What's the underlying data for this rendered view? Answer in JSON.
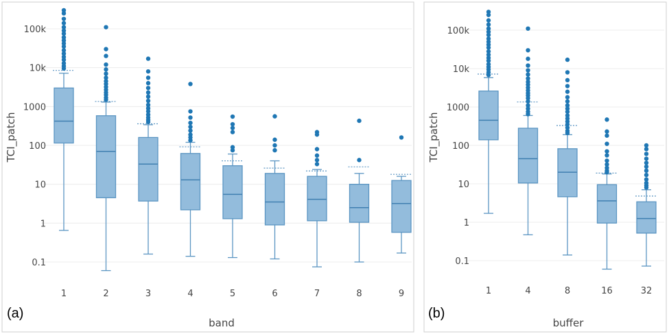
{
  "chart_data": [
    {
      "type": "box",
      "panel_label": "(a)",
      "xlabel": "band",
      "ylabel": "TCI_patch",
      "yscale": "log",
      "ylim": [
        0.05,
        400000
      ],
      "yticks": [
        0.1,
        1,
        10,
        100,
        1000,
        10000,
        100000
      ],
      "ytick_labels": [
        "0.1",
        "1",
        "10",
        "100",
        "1000",
        "10k",
        "100k"
      ],
      "categories": [
        "1",
        "2",
        "3",
        "4",
        "5",
        "6",
        "7",
        "8",
        "9"
      ],
      "boxes": [
        {
          "min": 0.65,
          "q1": 115,
          "median": 420,
          "q3": 3000,
          "max": 7200,
          "mean": 8500,
          "outliers": [
            300000,
            250000,
            180000,
            140000,
            110000,
            90000,
            75000,
            60000,
            50000,
            42000,
            35000,
            28000,
            23000,
            19000,
            16000,
            13000,
            11000,
            9500
          ]
        },
        {
          "min": 0.06,
          "q1": 4.5,
          "median": 70,
          "q3": 580,
          "max": 1300,
          "mean": 1350,
          "outliers": [
            110000,
            30000,
            20000,
            12000,
            9000,
            7000,
            5500,
            4500,
            3800,
            3200,
            2700,
            2300,
            2000,
            1700,
            1500
          ]
        },
        {
          "min": 0.16,
          "q1": 3.7,
          "median": 33,
          "q3": 160,
          "max": 340,
          "mean": 360,
          "outliers": [
            17000,
            8000,
            5500,
            4000,
            3000,
            2300,
            1800,
            1400,
            1100,
            900,
            750,
            620,
            520,
            450,
            400
          ]
        },
        {
          "min": 0.14,
          "q1": 2.2,
          "median": 13,
          "q3": 62,
          "max": 120,
          "mean": 92,
          "outliers": [
            3800,
            750,
            520,
            380,
            300,
            240,
            190,
            160,
            135
          ]
        },
        {
          "min": 0.13,
          "q1": 1.3,
          "median": 5.5,
          "q3": 30,
          "max": 60,
          "mean": 40,
          "outliers": [
            550,
            350,
            280,
            220,
            90,
            75
          ]
        },
        {
          "min": 0.12,
          "q1": 0.9,
          "median": 3.5,
          "q3": 19,
          "max": 40,
          "mean": 26,
          "outliers": [
            560,
            140,
            100,
            75
          ]
        },
        {
          "min": 0.075,
          "q1": 1.15,
          "median": 4.1,
          "q3": 16,
          "max": 24,
          "mean": 22,
          "outliers": [
            220,
            190,
            80,
            55,
            42,
            33
          ]
        },
        {
          "min": 0.1,
          "q1": 1.05,
          "median": 2.5,
          "q3": 10,
          "max": 19,
          "mean": 28,
          "outliers": [
            430,
            42
          ]
        },
        {
          "min": 0.17,
          "q1": 0.58,
          "median": 3.2,
          "q3": 12.5,
          "max": 16,
          "mean": 18,
          "outliers": [
            160
          ]
        }
      ]
    },
    {
      "type": "box",
      "panel_label": "(b)",
      "xlabel": "buffer",
      "ylabel": "TCI_patch",
      "yscale": "log",
      "ylim": [
        0.05,
        400000
      ],
      "yticks": [
        0.1,
        1,
        10,
        100,
        1000,
        10000,
        100000
      ],
      "ytick_labels": [
        "0.1",
        "1",
        "10",
        "100",
        "1000",
        "10k",
        "100k"
      ],
      "categories": [
        "1",
        "4",
        "8",
        "16",
        "32"
      ],
      "boxes": [
        {
          "min": 1.7,
          "q1": 140,
          "median": 450,
          "q3": 2600,
          "max": 5800,
          "mean": 7200,
          "outliers": [
            300000,
            250000,
            180000,
            140000,
            110000,
            90000,
            75000,
            60000,
            50000,
            42000,
            35000,
            28000,
            23000,
            19000,
            16000,
            13000,
            11000,
            9500,
            8000,
            6800
          ]
        },
        {
          "min": 0.47,
          "q1": 10.5,
          "median": 45,
          "q3": 280,
          "max": 600,
          "mean": 1350,
          "outliers": [
            110000,
            30000,
            18000,
            12000,
            9000,
            7000,
            5500,
            4500,
            3800,
            3200,
            2700,
            2300,
            2000,
            1700,
            1400,
            1100,
            900,
            750,
            650
          ]
        },
        {
          "min": 0.14,
          "q1": 4.6,
          "median": 20,
          "q3": 82,
          "max": 190,
          "mean": 330,
          "outliers": [
            17000,
            8000,
            5000,
            3500,
            2500,
            1800,
            1400,
            1100,
            900,
            750,
            600,
            500,
            420,
            350,
            290,
            240,
            210
          ]
        },
        {
          "min": 0.06,
          "q1": 0.95,
          "median": 3.6,
          "q3": 9.5,
          "max": 18,
          "mean": 19,
          "outliers": [
            470,
            230,
            180,
            110,
            70,
            55,
            40,
            32,
            26,
            22,
            20
          ]
        },
        {
          "min": 0.072,
          "q1": 0.52,
          "median": 1.25,
          "q3": 3.4,
          "max": 7,
          "mean": 4.8,
          "outliers": [
            100,
            80,
            60,
            45,
            35,
            28,
            22,
            17,
            13,
            10.5,
            9,
            8
          ]
        }
      ]
    }
  ]
}
